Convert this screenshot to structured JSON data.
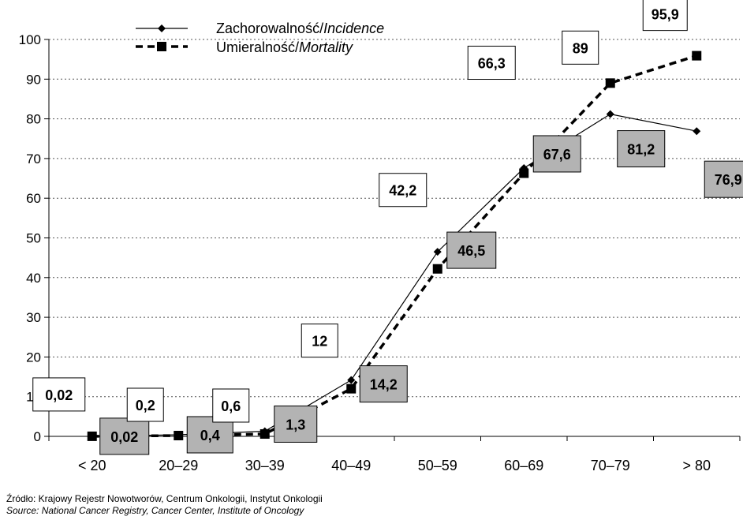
{
  "chart_data": {
    "type": "line",
    "categories": [
      "< 20",
      "20–29",
      "30–39",
      "40–49",
      "50–59",
      "60–69",
      "70–79",
      "> 80"
    ],
    "series": [
      {
        "name_main": "Zachorowalność/",
        "name_italic": "Incidence",
        "marker": "diamond",
        "line": "solid",
        "values": [
          0.02,
          0.4,
          1.3,
          14.2,
          46.5,
          67.6,
          81.2,
          76.9
        ],
        "labels": [
          "0,02",
          "0,4",
          "1,3",
          "14,2",
          "46,5",
          "67,6",
          "81,2",
          "76,9"
        ],
        "label_fill": "#b3b3b3"
      },
      {
        "name_main": "Umieralność/",
        "name_italic": "Mortality",
        "marker": "square",
        "line": "dashed",
        "values": [
          0.02,
          0.2,
          0.6,
          12,
          42.2,
          66.3,
          89,
          95.9
        ],
        "labels": [
          "0,02",
          "0,2",
          "0,6",
          "12",
          "42,2",
          "66,3",
          "89",
          "95,9"
        ],
        "label_fill": "#ffffff"
      }
    ],
    "ylim": [
      0,
      100
    ],
    "yticks": [
      0,
      10,
      20,
      30,
      40,
      50,
      60,
      70,
      80,
      90,
      100
    ],
    "grid": "horizontal-dotted",
    "legend_position": "top-left"
  },
  "source": {
    "pl": "Źródło: Krajowy Rejestr Nowotworów, Centrum Onkologii, Instytut Onkologii",
    "en": "Source: National Cancer Registry, Cancer Center, Institute of Oncology"
  },
  "colors": {
    "line": "#000000",
    "grid": "#555555",
    "gray_box": "#b3b3b3"
  }
}
